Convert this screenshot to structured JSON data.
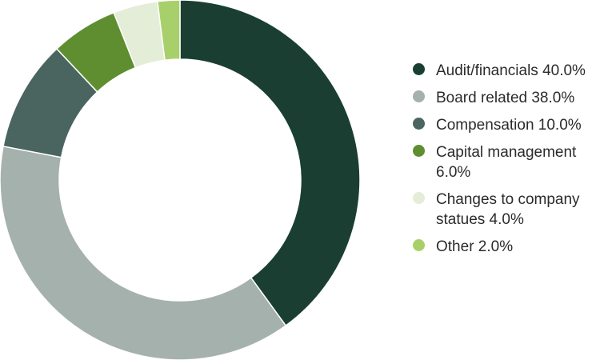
{
  "chart_data": {
    "type": "pie",
    "donut": true,
    "title": "",
    "legend_position": "right",
    "slices": [
      {
        "label": "Audit/financials",
        "value": 40.0,
        "display": "Audit/financials 40.0%",
        "color": "#1b3e32"
      },
      {
        "label": "Board related",
        "value": 38.0,
        "display": "Board related 38.0%",
        "color": "#a5b1ac"
      },
      {
        "label": "Compensation",
        "value": 10.0,
        "display": "Compensation 10.0%",
        "color": "#4a6560"
      },
      {
        "label": "Capital management",
        "value": 6.0,
        "display": "Capital management 6.0%",
        "color": "#5f8e30"
      },
      {
        "label": "Changes to company statues",
        "value": 4.0,
        "display": "Changes to company statues 4.0%",
        "color": "#e4edd7"
      },
      {
        "label": "Other",
        "value": 2.0,
        "display": "Other 2.0%",
        "color": "#a8d06a"
      }
    ]
  }
}
